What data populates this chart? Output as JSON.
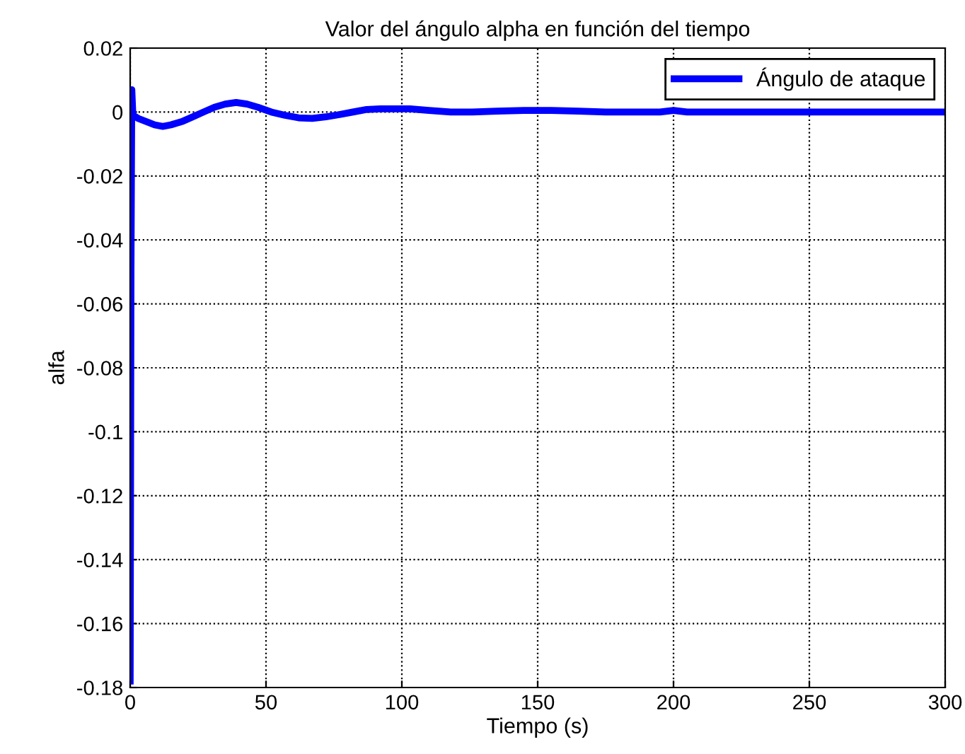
{
  "chart_data": {
    "type": "line",
    "title": "Valor del ángulo alpha en función del tiempo",
    "xlabel": "Tiempo (s)",
    "ylabel": "alfa",
    "series": [
      {
        "name": "Ángulo de ataque",
        "color": "#0000ff",
        "x": [
          0,
          0.3,
          0.6,
          1,
          3,
          6,
          9,
          12,
          15,
          19,
          23,
          27,
          31,
          35,
          39,
          43,
          47,
          52,
          57,
          62,
          67,
          72,
          77,
          82,
          87,
          92,
          97,
          103,
          110,
          118,
          126,
          135,
          145,
          155,
          165,
          175,
          185,
          195,
          200,
          205,
          215,
          230,
          250,
          270,
          300
        ],
        "values": [
          -0.178,
          -0.05,
          0.007,
          -0.001,
          -0.002,
          -0.003,
          -0.004,
          -0.0045,
          -0.004,
          -0.003,
          -0.0015,
          0.0,
          0.0015,
          0.0025,
          0.003,
          0.0025,
          0.0015,
          0.0,
          -0.001,
          -0.0018,
          -0.002,
          -0.0015,
          -0.0008,
          0.0,
          0.0008,
          0.001,
          0.001,
          0.001,
          0.0005,
          0.0,
          0.0,
          0.0003,
          0.0005,
          0.0005,
          0.0003,
          0.0,
          0.0,
          0.0,
          0.0005,
          0.0,
          0.0,
          0.0,
          0.0,
          0.0,
          0.0
        ]
      }
    ],
    "xlim": [
      0,
      300
    ],
    "ylim": [
      -0.18,
      0.02
    ],
    "xticks": [
      0,
      50,
      100,
      150,
      200,
      250,
      300
    ],
    "yticks": [
      -0.18,
      -0.16,
      -0.14,
      -0.12,
      -0.1,
      -0.08,
      -0.06,
      -0.04,
      -0.02,
      0,
      0.02
    ],
    "grid": true,
    "legend": "top right"
  }
}
